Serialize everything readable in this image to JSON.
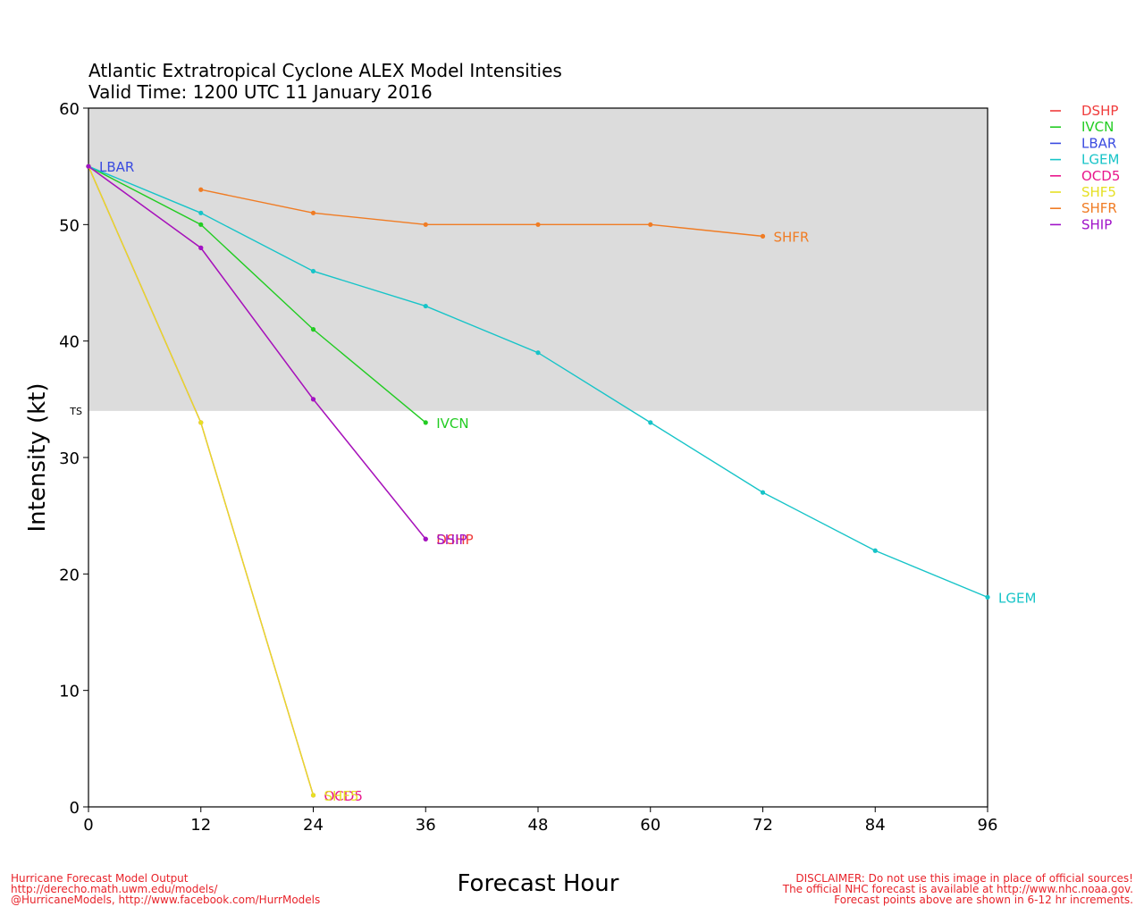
{
  "title": [
    "Atlantic Extratropical Cyclone ALEX Model Intensities",
    "Valid Time: 1200 UTC 11 January 2016"
  ],
  "footer_left": [
    "Hurricane Forecast Model Output",
    "http://derecho.math.uwm.edu/models/",
    "@HurricaneModels, http://www.facebook.com/HurrModels"
  ],
  "footer_right": [
    "DISCLAIMER: Do not use this image in place of official sources!",
    "The official NHC forecast is available at http://www.nhc.noaa.gov.",
    "Forecast points above are shown in 6-12 hr increments."
  ],
  "chart_data": {
    "type": "line",
    "xlabel": "Forecast Hour",
    "ylabel": "Intensity (kt)",
    "xlim": [
      0,
      96
    ],
    "ylim": [
      0,
      60
    ],
    "xticks": [
      0,
      12,
      24,
      36,
      48,
      60,
      72,
      84,
      96
    ],
    "yticks": [
      0,
      10,
      20,
      30,
      40,
      50,
      60
    ],
    "shaded_band": {
      "from": 34,
      "to": 60,
      "label": "TS",
      "color": "#dcdcdc"
    },
    "legend_position": "right, outside plot, top",
    "series": [
      {
        "name": "DSHP",
        "color": "#f03c3c",
        "x": [
          0,
          12,
          24,
          36
        ],
        "y": [
          55,
          48,
          35,
          23
        ],
        "end_label": "DSHP"
      },
      {
        "name": "IVCN",
        "color": "#22cc22",
        "x": [
          0,
          12,
          24,
          36
        ],
        "y": [
          55,
          50,
          41,
          33
        ],
        "end_label": "IVCN"
      },
      {
        "name": "LBAR",
        "color": "#3a4be0",
        "x": [
          0
        ],
        "y": [
          55
        ],
        "end_label": "LBAR"
      },
      {
        "name": "LGEM",
        "color": "#17c4c8",
        "x": [
          0,
          12,
          24,
          36,
          48,
          60,
          72,
          84,
          96
        ],
        "y": [
          55,
          51,
          46,
          43,
          39,
          33,
          27,
          22,
          18
        ],
        "end_label": "LGEM"
      },
      {
        "name": "OCD5",
        "color": "#e8168c",
        "x": [
          0,
          12,
          24
        ],
        "y": [
          55,
          33,
          1
        ],
        "end_label": "OCD5"
      },
      {
        "name": "SHF5",
        "color": "#e6e024",
        "x": [
          0,
          12,
          24
        ],
        "y": [
          55,
          33,
          1
        ],
        "end_label": "SHF5"
      },
      {
        "name": "SHFR",
        "color": "#f07c24",
        "x": [
          12,
          24,
          36,
          48,
          60,
          72
        ],
        "y": [
          53,
          51,
          50,
          50,
          50,
          49
        ],
        "end_label": "SHFR"
      },
      {
        "name": "SHIP",
        "color": "#a012c8",
        "x": [
          0,
          12,
          24,
          36
        ],
        "y": [
          55,
          48,
          35,
          23
        ],
        "end_label": "SHIP"
      }
    ]
  }
}
